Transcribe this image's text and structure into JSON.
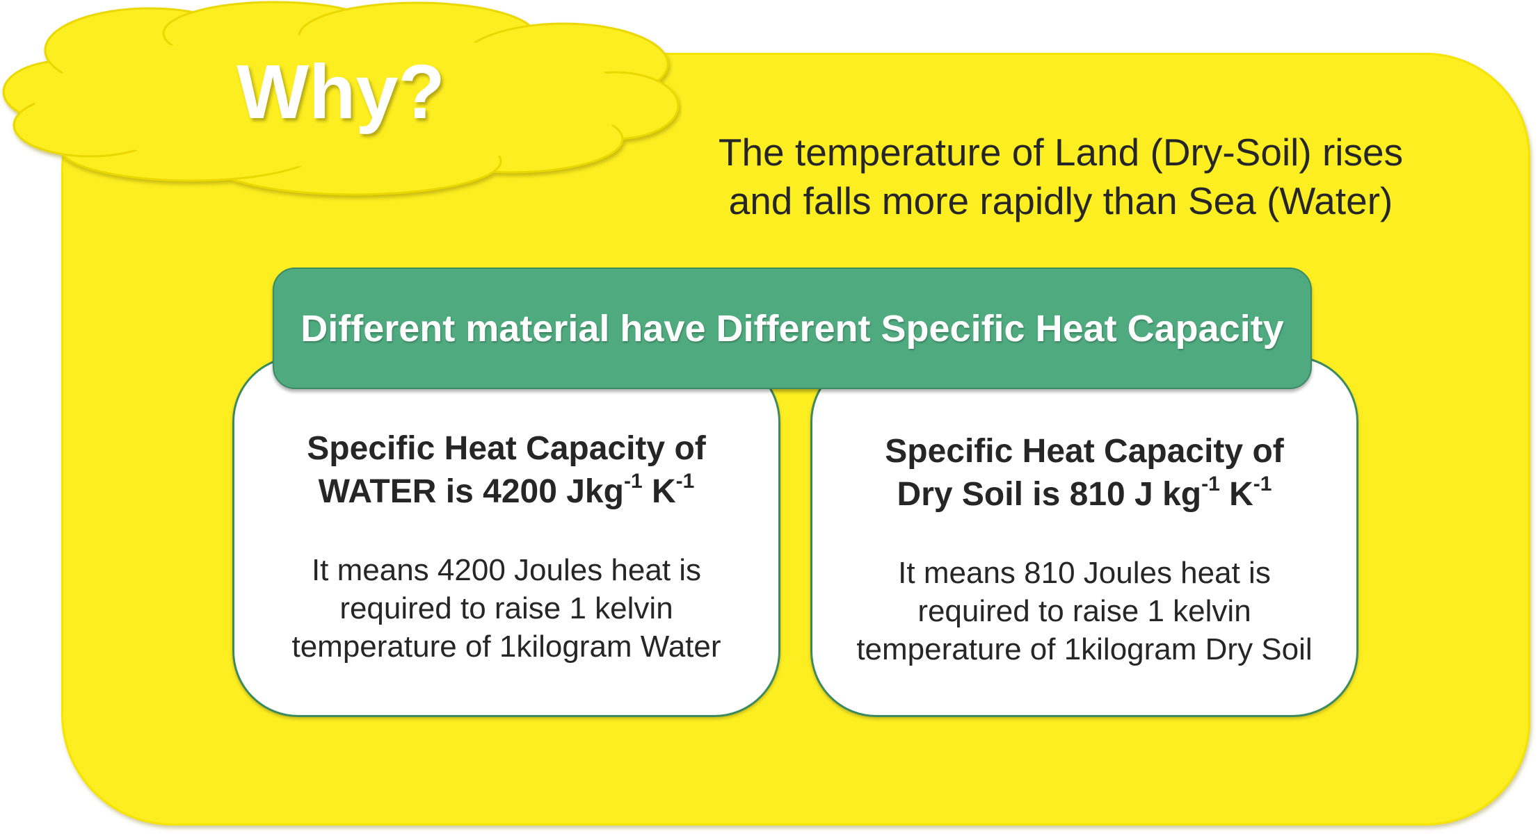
{
  "title": "Why?",
  "intro": {
    "line1": "The temperature of Land (Dry-Soil) rises",
    "line2": "and falls more rapidly than Sea (Water)"
  },
  "banner": "Different material have Different Specific Heat Capacity",
  "cards": [
    {
      "heading_line1": "Specific Heat Capacity of",
      "heading_value": "WATER is 4200 Jkg",
      "unit_kg_exponent": "-1",
      "unit_k": " K",
      "unit_k_exponent": "-1",
      "body_line1": "It means 4200 Joules heat is",
      "body_line2": "required to raise 1 kelvin",
      "body_line3": "temperature of 1kilogram Water"
    },
    {
      "heading_line1": "Specific Heat Capacity of",
      "heading_value": "Dry Soil is 810 J kg",
      "unit_kg_exponent": "-1",
      "unit_k": " K",
      "unit_k_exponent": "-1",
      "body_line1": "It means 810 Joules heat is",
      "body_line2": "required to raise 1 kelvin",
      "body_line3": "temperature of 1kilogram Dry Soil"
    }
  ],
  "colors": {
    "panel": "#fdee21",
    "banner": "#4faa7f",
    "card_border": "#3d8a5f",
    "text": "#262626"
  }
}
